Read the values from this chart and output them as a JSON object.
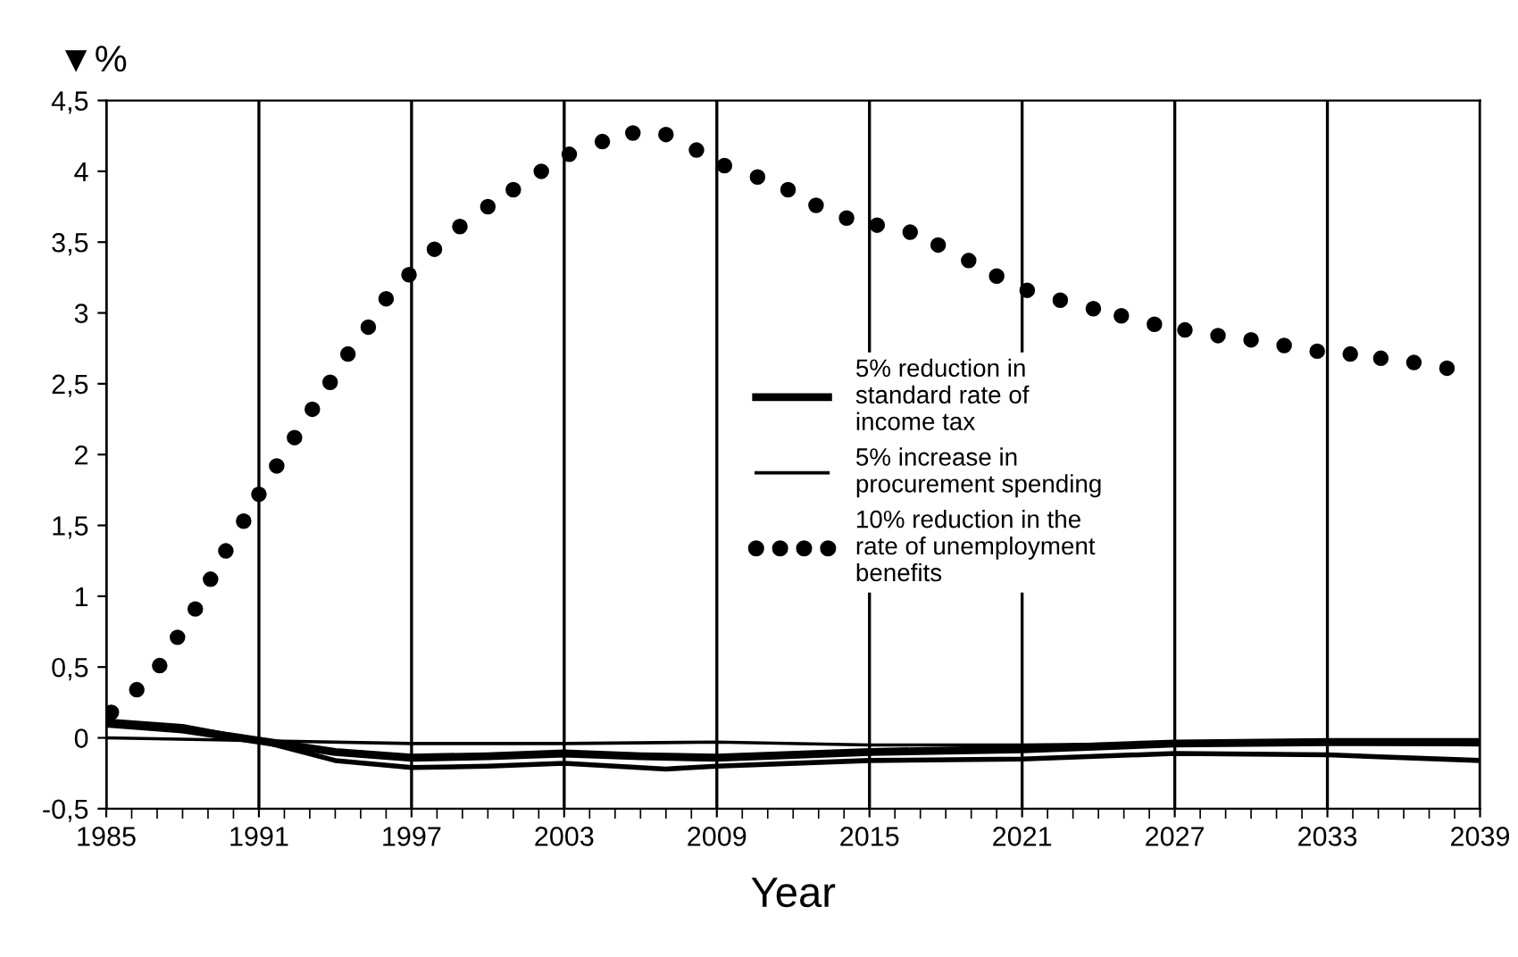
{
  "chart_data": {
    "type": "line",
    "xlabel": "Year",
    "ylabel": "▼%",
    "xlim": [
      1985,
      2039
    ],
    "xticks": [
      1985,
      1991,
      1997,
      2003,
      2009,
      2015,
      2021,
      2027,
      2033,
      2039
    ],
    "ylim": [
      -0.5,
      4.5
    ],
    "yticks": [
      {
        "value": -0.5,
        "label": "-0,5"
      },
      0,
      {
        "value": 0.5,
        "label": "0,5"
      },
      1,
      {
        "value": 1.5,
        "label": "1,5"
      },
      2,
      {
        "value": 2.5,
        "label": "2,5"
      },
      3,
      {
        "value": 3.5,
        "label": "3,5"
      },
      4,
      {
        "value": 4.5,
        "label": "4,5"
      }
    ],
    "grid": "x",
    "legend": "center right",
    "series": [
      {
        "name": "5% reduction in\nstandard rate of\nincome tax",
        "color": "#000000",
        "x": [
          1985,
          1988,
          1991,
          1994,
          1997,
          2000,
          2003,
          2006,
          2009,
          2015,
          2021,
          2027,
          2033,
          2039
        ],
        "values": [
          0.1,
          0.06,
          -0.02,
          -0.1,
          -0.14,
          -0.13,
          -0.11,
          -0.13,
          -0.14,
          -0.1,
          -0.08,
          -0.04,
          -0.03,
          -0.03
        ]
      },
      {
        "name": "5% increase in\nprocurement spending",
        "color": "#000000",
        "x": [
          1985,
          1991,
          1997,
          2003,
          2009,
          2015,
          2021,
          2027,
          2033,
          2039
        ],
        "values": [
          0.0,
          -0.02,
          -0.04,
          -0.04,
          -0.03,
          -0.05,
          -0.05,
          -0.04,
          -0.04,
          -0.05
        ]
      },
      {
        "color": "#000000",
        "x": [
          1985,
          1988,
          1991,
          1994,
          1997,
          2000,
          2003,
          2007,
          2009,
          2015,
          2021,
          2027,
          2033,
          2039
        ],
        "values": [
          0.12,
          0.08,
          -0.02,
          -0.16,
          -0.21,
          -0.2,
          -0.18,
          -0.22,
          -0.2,
          -0.16,
          -0.15,
          -0.11,
          -0.12,
          -0.16
        ]
      },
      {
        "name": "10% reduction in the\nrate of unemployment\nbenefits",
        "type": "scatter",
        "marker": "circle",
        "color": "#000000",
        "x": [
          1985.2,
          1986.2,
          1987.1,
          1987.8,
          1988.5,
          1989.1,
          1989.7,
          1990.4,
          1991.0,
          1991.7,
          1992.4,
          1993.1,
          1993.8,
          1994.5,
          1995.3,
          1996.0,
          1996.9,
          1997.9,
          1998.9,
          2000.0,
          2001.0,
          2002.1,
          2003.2,
          2004.5,
          2005.7,
          2007.0,
          2008.2,
          2009.3,
          2010.6,
          2011.8,
          2012.9,
          2014.1,
          2015.3,
          2016.6,
          2017.7,
          2018.9,
          2020.0,
          2021.2,
          2022.5,
          2023.8,
          2024.9,
          2026.2,
          2027.4,
          2028.7,
          2030.0,
          2031.3,
          2032.6,
          2033.9,
          2035.1,
          2036.4,
          2037.7
        ],
        "values": [
          0.18,
          0.34,
          0.51,
          0.71,
          0.91,
          1.12,
          1.32,
          1.53,
          1.72,
          1.92,
          2.12,
          2.32,
          2.51,
          2.71,
          2.9,
          3.1,
          3.27,
          3.45,
          3.61,
          3.75,
          3.87,
          4.0,
          4.12,
          4.21,
          4.27,
          4.26,
          4.15,
          4.04,
          3.96,
          3.87,
          3.76,
          3.67,
          3.62,
          3.57,
          3.48,
          3.37,
          3.26,
          3.16,
          3.09,
          3.03,
          2.98,
          2.92,
          2.88,
          2.84,
          2.81,
          2.77,
          2.73,
          2.71,
          2.68,
          2.65,
          2.61
        ]
      }
    ]
  }
}
